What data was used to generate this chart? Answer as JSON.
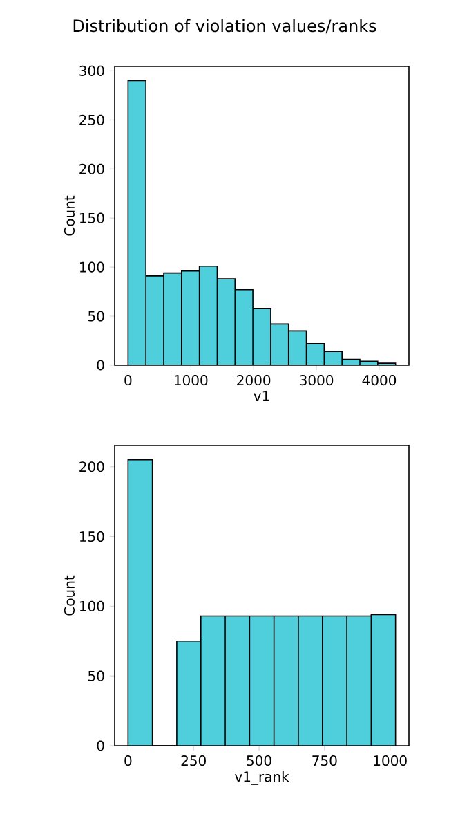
{
  "chart_data": [
    {
      "type": "histogram",
      "title": "Distribution of violation values/ranks",
      "xlabel": "v1",
      "ylabel": "Count",
      "color": "#4fcfdb",
      "bins": [
        0,
        284,
        568,
        852,
        1136,
        1420,
        1704,
        1988,
        2272,
        2556,
        2840,
        3124,
        3408,
        3692,
        3976,
        4260
      ],
      "values": [
        290,
        91,
        94,
        96,
        101,
        88,
        77,
        58,
        42,
        35,
        22,
        14,
        6,
        4,
        2
      ],
      "xlim": [
        -213,
        4473
      ],
      "ylim": [
        0,
        304.5
      ],
      "xticks": [
        0,
        1000,
        2000,
        3000,
        4000
      ],
      "yticks": [
        0,
        50,
        100,
        150,
        200,
        250,
        300
      ]
    },
    {
      "type": "histogram",
      "xlabel": "v1_rank",
      "ylabel": "Count",
      "color": "#4fcfdb",
      "bins": [
        0,
        93,
        186,
        278,
        371,
        464,
        557,
        650,
        742,
        835,
        928,
        1021
      ],
      "values": [
        205,
        0,
        75,
        93,
        93,
        93,
        93,
        93,
        93,
        93,
        94
      ],
      "xlim": [
        -51,
        1072
      ],
      "ylim": [
        0,
        215.25
      ],
      "xticks": [
        0,
        250,
        500,
        750,
        1000
      ],
      "yticks": [
        0,
        50,
        100,
        150,
        200
      ]
    }
  ]
}
